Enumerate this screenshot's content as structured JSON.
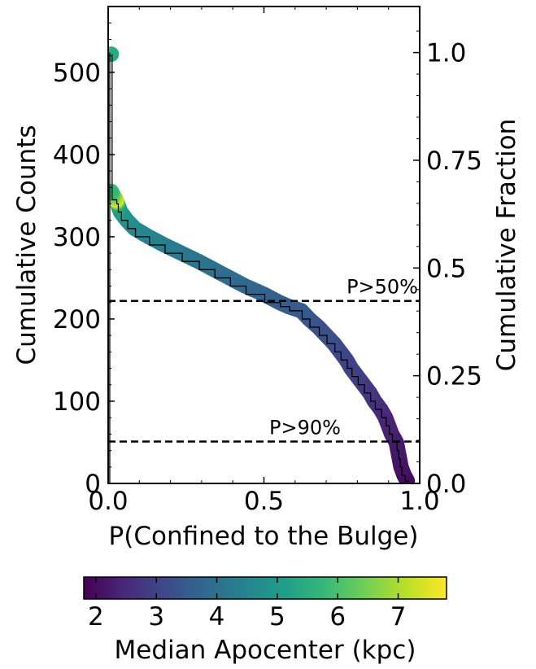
{
  "chart_data": {
    "type": "scatter",
    "xlabel": "P(Confined to the Bulge)",
    "ylabel_left": "Cumulative Counts",
    "ylabel_right": "Cumulative Fraction",
    "xlim": [
      0.0,
      1.0
    ],
    "ylim": [
      0,
      580
    ],
    "xticks": [
      "0.0",
      "0.5",
      "1.0"
    ],
    "yticks_left": [
      "0",
      "100",
      "200",
      "300",
      "400",
      "500"
    ],
    "yticks_right": [
      "0.0",
      "0.25",
      "0.5",
      "0.75",
      "1.0"
    ],
    "total_count": 524,
    "lines": [
      {
        "label": "P>50%",
        "y": 222
      },
      {
        "label": "P>90%",
        "y": 51
      }
    ],
    "colorbar": {
      "label": "Median Apocenter (kpc)",
      "range": [
        1.8,
        7.8
      ],
      "ticks": [
        "2",
        "3",
        "4",
        "5",
        "6",
        "7"
      ]
    },
    "points": [
      {
        "x": 0.96,
        "y": 3,
        "c": 2.0
      },
      {
        "x": 0.95,
        "y": 10,
        "c": 2.0
      },
      {
        "x": 0.94,
        "y": 20,
        "c": 2.1
      },
      {
        "x": 0.935,
        "y": 30,
        "c": 2.1
      },
      {
        "x": 0.93,
        "y": 40,
        "c": 2.2
      },
      {
        "x": 0.925,
        "y": 50,
        "c": 2.2
      },
      {
        "x": 0.91,
        "y": 60,
        "c": 2.3
      },
      {
        "x": 0.9,
        "y": 70,
        "c": 2.4
      },
      {
        "x": 0.89,
        "y": 80,
        "c": 2.4
      },
      {
        "x": 0.875,
        "y": 90,
        "c": 2.5
      },
      {
        "x": 0.855,
        "y": 100,
        "c": 2.6
      },
      {
        "x": 0.84,
        "y": 110,
        "c": 2.7
      },
      {
        "x": 0.82,
        "y": 120,
        "c": 2.8
      },
      {
        "x": 0.8,
        "y": 130,
        "c": 2.9
      },
      {
        "x": 0.78,
        "y": 140,
        "c": 3.0
      },
      {
        "x": 0.765,
        "y": 150,
        "c": 3.0
      },
      {
        "x": 0.745,
        "y": 160,
        "c": 3.1
      },
      {
        "x": 0.725,
        "y": 170,
        "c": 3.2
      },
      {
        "x": 0.7,
        "y": 180,
        "c": 3.3
      },
      {
        "x": 0.675,
        "y": 190,
        "c": 3.3
      },
      {
        "x": 0.645,
        "y": 200,
        "c": 3.4
      },
      {
        "x": 0.62,
        "y": 210,
        "c": 3.5
      },
      {
        "x": 0.58,
        "y": 215,
        "c": 3.5
      },
      {
        "x": 0.55,
        "y": 220,
        "c": 3.6
      },
      {
        "x": 0.5,
        "y": 230,
        "c": 3.7
      },
      {
        "x": 0.44,
        "y": 240,
        "c": 3.8
      },
      {
        "x": 0.39,
        "y": 250,
        "c": 3.9
      },
      {
        "x": 0.34,
        "y": 260,
        "c": 4.0
      },
      {
        "x": 0.29,
        "y": 270,
        "c": 4.1
      },
      {
        "x": 0.235,
        "y": 280,
        "c": 4.2
      },
      {
        "x": 0.18,
        "y": 290,
        "c": 4.3
      },
      {
        "x": 0.13,
        "y": 300,
        "c": 4.5
      },
      {
        "x": 0.085,
        "y": 310,
        "c": 4.6
      },
      {
        "x": 0.06,
        "y": 320,
        "c": 4.8
      },
      {
        "x": 0.04,
        "y": 330,
        "c": 5.0
      },
      {
        "x": 0.03,
        "y": 340,
        "c": 5.3
      },
      {
        "x": 0.025,
        "y": 345,
        "c": 7.5
      },
      {
        "x": 0.01,
        "y": 355,
        "c": 5.8
      },
      {
        "x": 0.01,
        "y": 522,
        "c": 5.5
      }
    ]
  }
}
